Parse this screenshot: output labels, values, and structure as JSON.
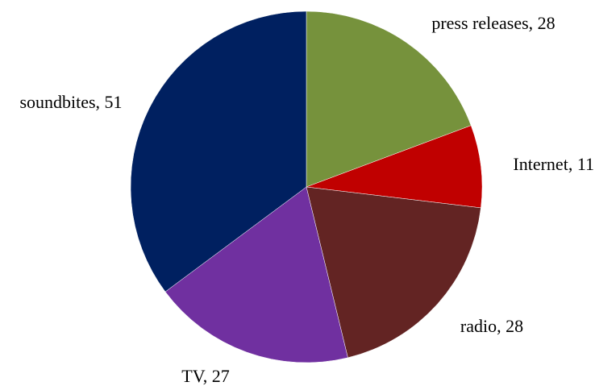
{
  "chart_data": {
    "type": "pie",
    "title": "",
    "slices": [
      {
        "label": "press releases",
        "value": 28,
        "display": "press releases, 28",
        "color": "#76923C"
      },
      {
        "label": "Internet",
        "value": 11,
        "display": "Internet, 11",
        "color": "#C00000"
      },
      {
        "label": "radio",
        "value": 28,
        "display": "radio, 28",
        "color": "#632423"
      },
      {
        "label": "TV",
        "value": 27,
        "display": "TV, 27",
        "color": "#7030A0"
      },
      {
        "label": "soundbites",
        "value": 51,
        "display": "soundbites, 51",
        "color": "#002060"
      }
    ],
    "start": "12 o'clock",
    "direction": "clockwise",
    "legend": "none",
    "data_labels": "outside, category and value"
  }
}
